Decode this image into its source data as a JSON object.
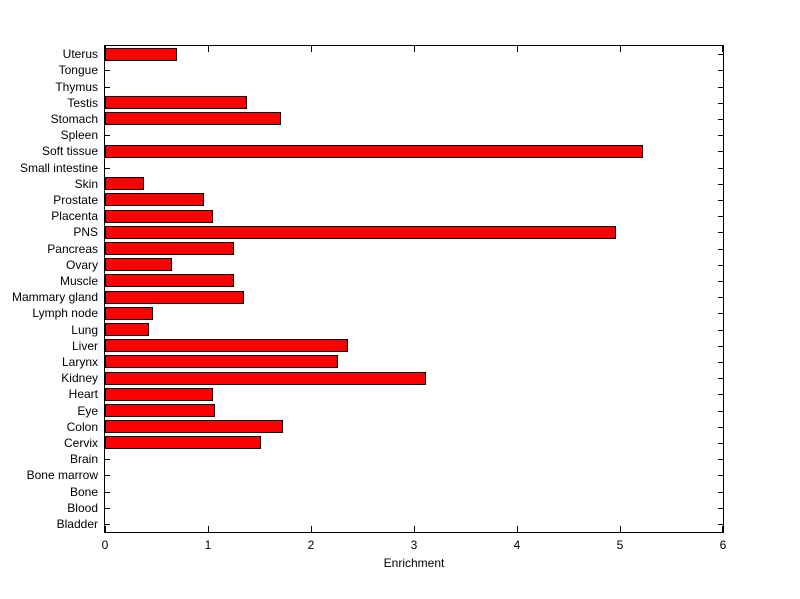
{
  "chart_data": {
    "type": "bar",
    "orientation": "horizontal",
    "title": "",
    "xlabel": "Enrichment",
    "ylabel": "",
    "xlim": [
      0,
      6
    ],
    "xticks": [
      "0",
      "1",
      "2",
      "3",
      "4",
      "5",
      "6"
    ],
    "grid": false,
    "legend": null,
    "bar_color": "#ff0000",
    "bar_edge_color": "#000000",
    "axis_color": "#000000",
    "background_color": "#ffffff",
    "categories": [
      "Uterus",
      "Tongue",
      "Thymus",
      "Testis",
      "Stomach",
      "Spleen",
      "Soft tissue",
      "Small intestine",
      "Skin",
      "Prostate",
      "Placenta",
      "PNS",
      "Pancreas",
      "Ovary",
      "Muscle",
      "Mammary gland",
      "Lymph node",
      "Lung",
      "Liver",
      "Larynx",
      "Kidney",
      "Heart",
      "Eye",
      "Colon",
      "Cervix",
      "Brain",
      "Bone marrow",
      "Bone",
      "Blood",
      "Bladder"
    ],
    "values": [
      0.7,
      0,
      0,
      1.38,
      1.71,
      0,
      5.22,
      0,
      0.38,
      0.96,
      1.05,
      4.96,
      1.25,
      0.65,
      1.25,
      1.35,
      0.47,
      0.43,
      2.36,
      2.26,
      3.12,
      1.05,
      1.07,
      1.73,
      1.51,
      0,
      0,
      0,
      0,
      0
    ]
  }
}
